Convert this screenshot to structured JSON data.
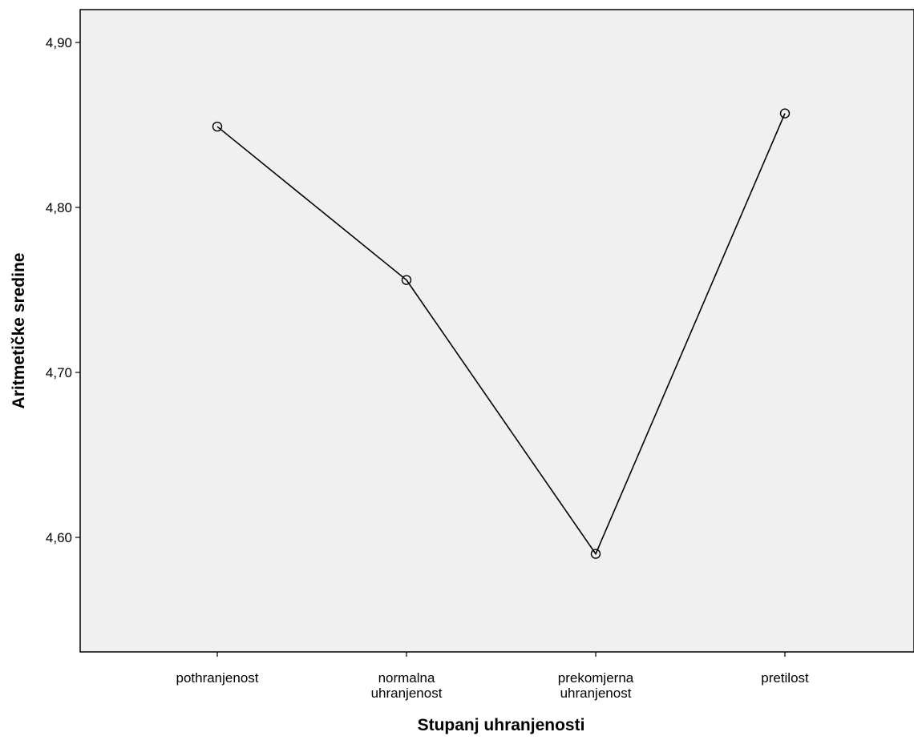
{
  "chart_data": {
    "type": "line",
    "xlabel": "Stupanj uhranjenosti",
    "ylabel": "Aritmetičke sredine",
    "categories": [
      [
        "pothranjenost"
      ],
      [
        "normalna",
        "uhranjenost"
      ],
      [
        "prekomjerna",
        "uhranjenost"
      ],
      [
        "pretilost"
      ]
    ],
    "values": [
      4.849,
      4.756,
      4.59,
      4.857
    ],
    "yticks": [
      "4,60",
      "4,70",
      "4,80",
      "4,90"
    ],
    "ytick_values": [
      4.6,
      4.7,
      4.8,
      4.9
    ],
    "ylim": [
      4.53,
      4.92
    ],
    "grid": false,
    "marker": "open-circle",
    "colors": {
      "plot_background": "#f0f0f0",
      "line": "#000000",
      "axis": "#000000"
    }
  }
}
